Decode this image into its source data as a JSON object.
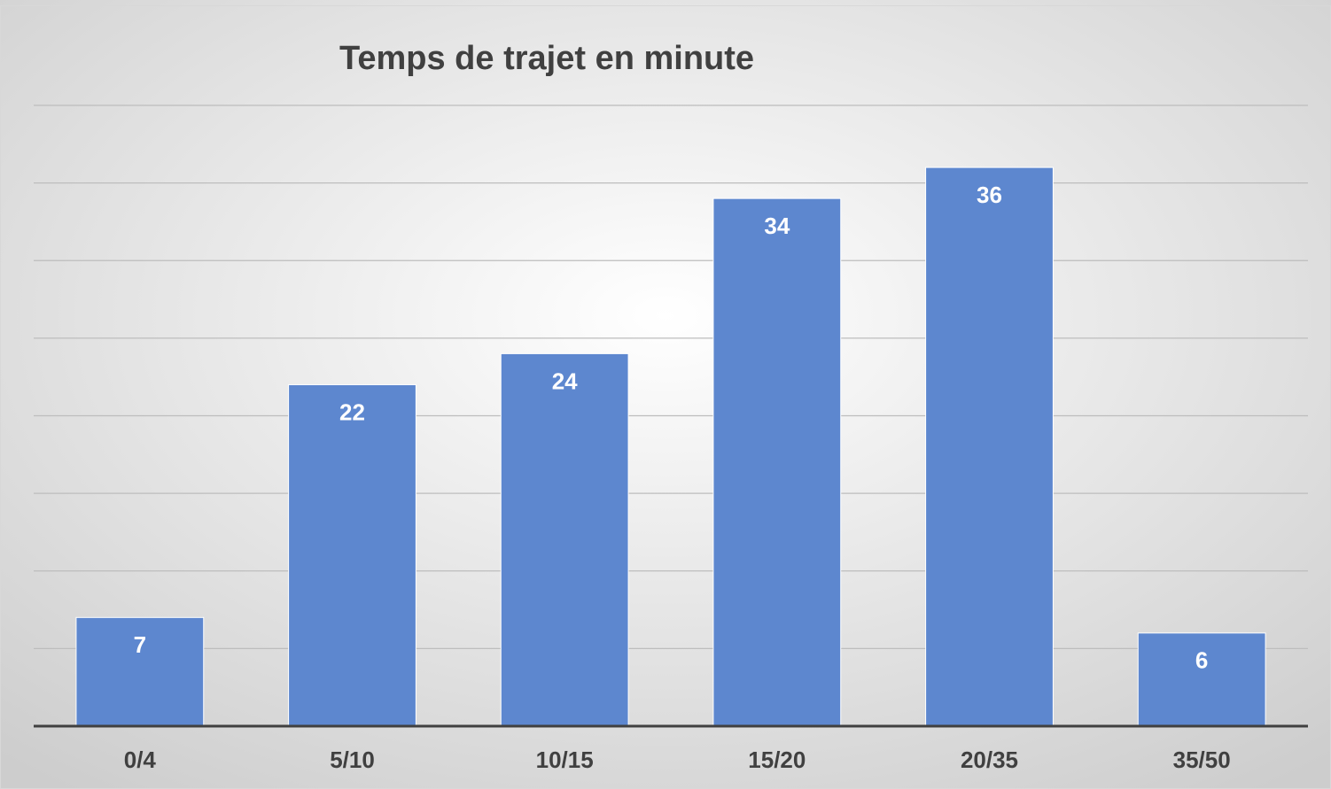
{
  "chart_data": {
    "type": "bar",
    "title": "Temps de trajet en minute",
    "categories": [
      "0/4",
      "5/10",
      "10/15",
      "15/20",
      "20/35",
      "35/50"
    ],
    "values": [
      7,
      22,
      24,
      34,
      36,
      6
    ],
    "color": "#5d87cf",
    "ylim": [
      0,
      40
    ],
    "yticks": [
      0,
      5,
      10,
      15,
      20,
      25,
      30,
      35,
      40
    ],
    "grid": true
  }
}
